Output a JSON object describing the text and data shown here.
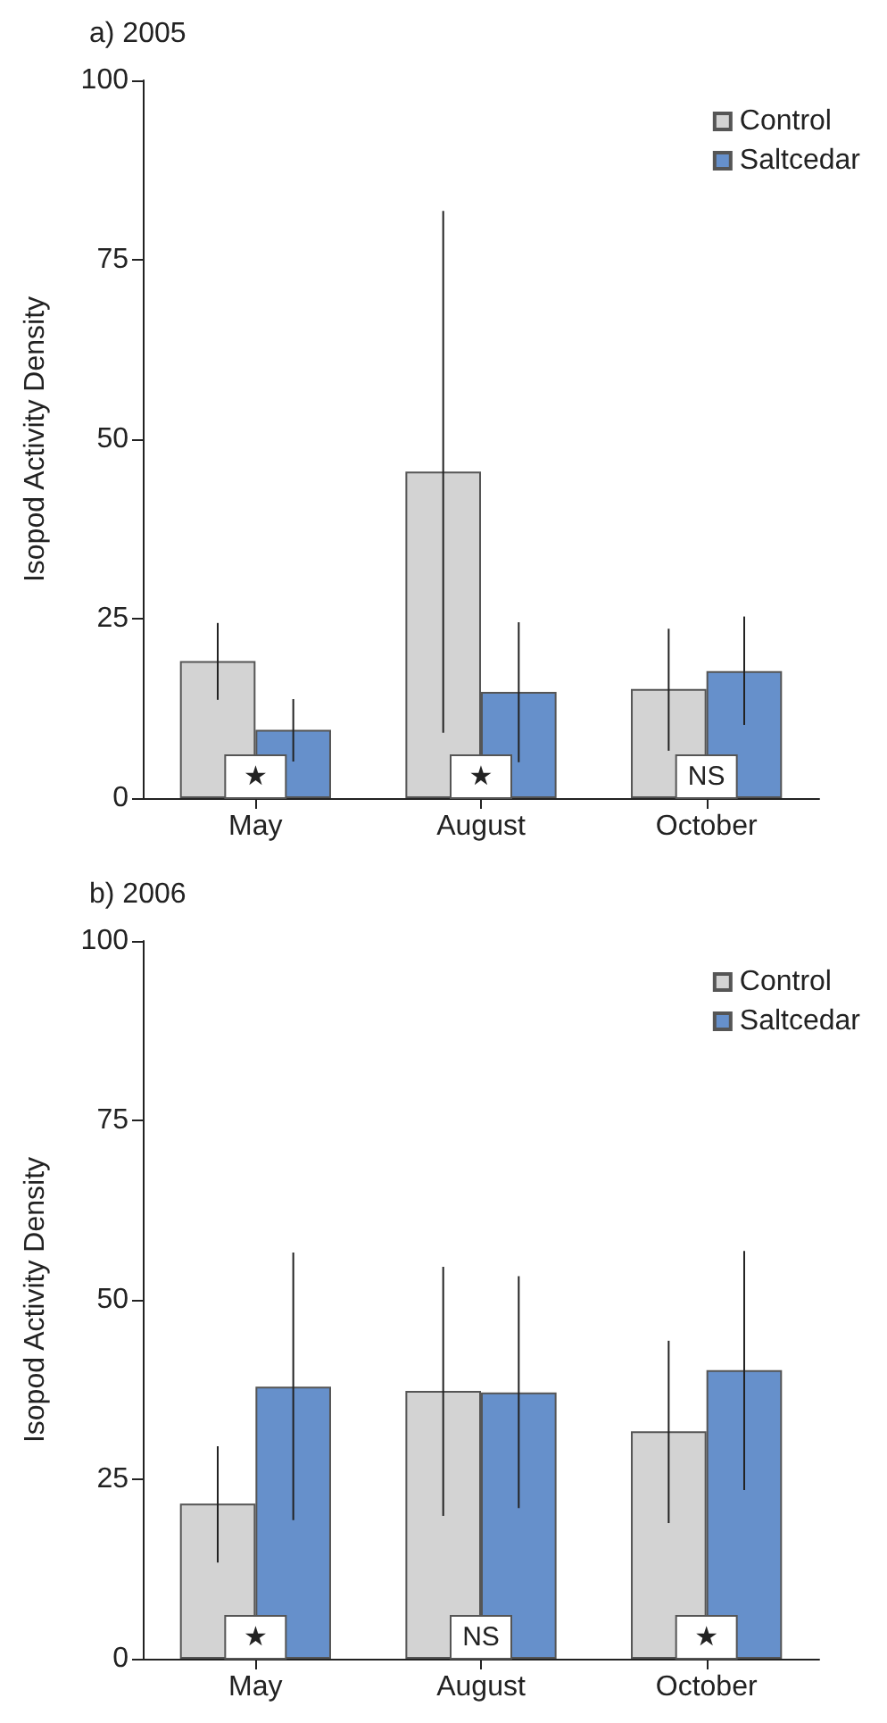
{
  "chart_data": [
    {
      "type": "bar",
      "title": "a) 2005",
      "ylabel": "Isopod Activity Density",
      "categories": [
        "May",
        "August",
        "October"
      ],
      "series": [
        {
          "name": "Control",
          "color": "#d3d3d3",
          "values": [
            19.1,
            45.5,
            15.2
          ],
          "errors": [
            [
              13.7,
              24.4
            ],
            [
              9.1,
              81.8
            ],
            [
              6.6,
              23.6
            ]
          ]
        },
        {
          "name": "Saltcedar",
          "color": "#6690cb",
          "values": [
            9.5,
            14.8,
            17.7
          ],
          "errors": [
            [
              5.1,
              13.8
            ],
            [
              5.0,
              24.5
            ],
            [
              10.2,
              25.3
            ]
          ]
        }
      ],
      "ylim": [
        0,
        100
      ],
      "yticks": [
        0,
        25,
        50,
        75,
        100
      ],
      "grid": false,
      "legend": "top right",
      "annotations": [
        {
          "text": "★",
          "x": "May",
          "y": 3
        },
        {
          "text": "★",
          "x": "August",
          "y": 3
        },
        {
          "text": "NS",
          "x": "October",
          "y": 3
        }
      ]
    },
    {
      "type": "bar",
      "title": "b) 2006",
      "ylabel": "Isopod Activity Density",
      "categories": [
        "May",
        "August",
        "October"
      ],
      "series": [
        {
          "name": "Control",
          "color": "#d3d3d3",
          "values": [
            21.6,
            37.3,
            31.7
          ],
          "errors": [
            [
              13.4,
              29.6
            ],
            [
              19.9,
              54.6
            ],
            [
              18.9,
              44.3
            ]
          ]
        },
        {
          "name": "Saltcedar",
          "color": "#6690cb",
          "values": [
            37.9,
            37.1,
            40.2
          ],
          "errors": [
            [
              19.3,
              56.6
            ],
            [
              21.0,
              53.3
            ],
            [
              23.5,
              56.8
            ]
          ]
        }
      ],
      "ylim": [
        0,
        100
      ],
      "yticks": [
        0,
        25,
        50,
        75,
        100
      ],
      "grid": false,
      "legend": "top right",
      "annotations": [
        {
          "text": "★",
          "x": "May",
          "y": 3
        },
        {
          "text": "NS",
          "x": "August",
          "y": 3
        },
        {
          "text": "★",
          "x": "October",
          "y": 3
        }
      ]
    }
  ]
}
